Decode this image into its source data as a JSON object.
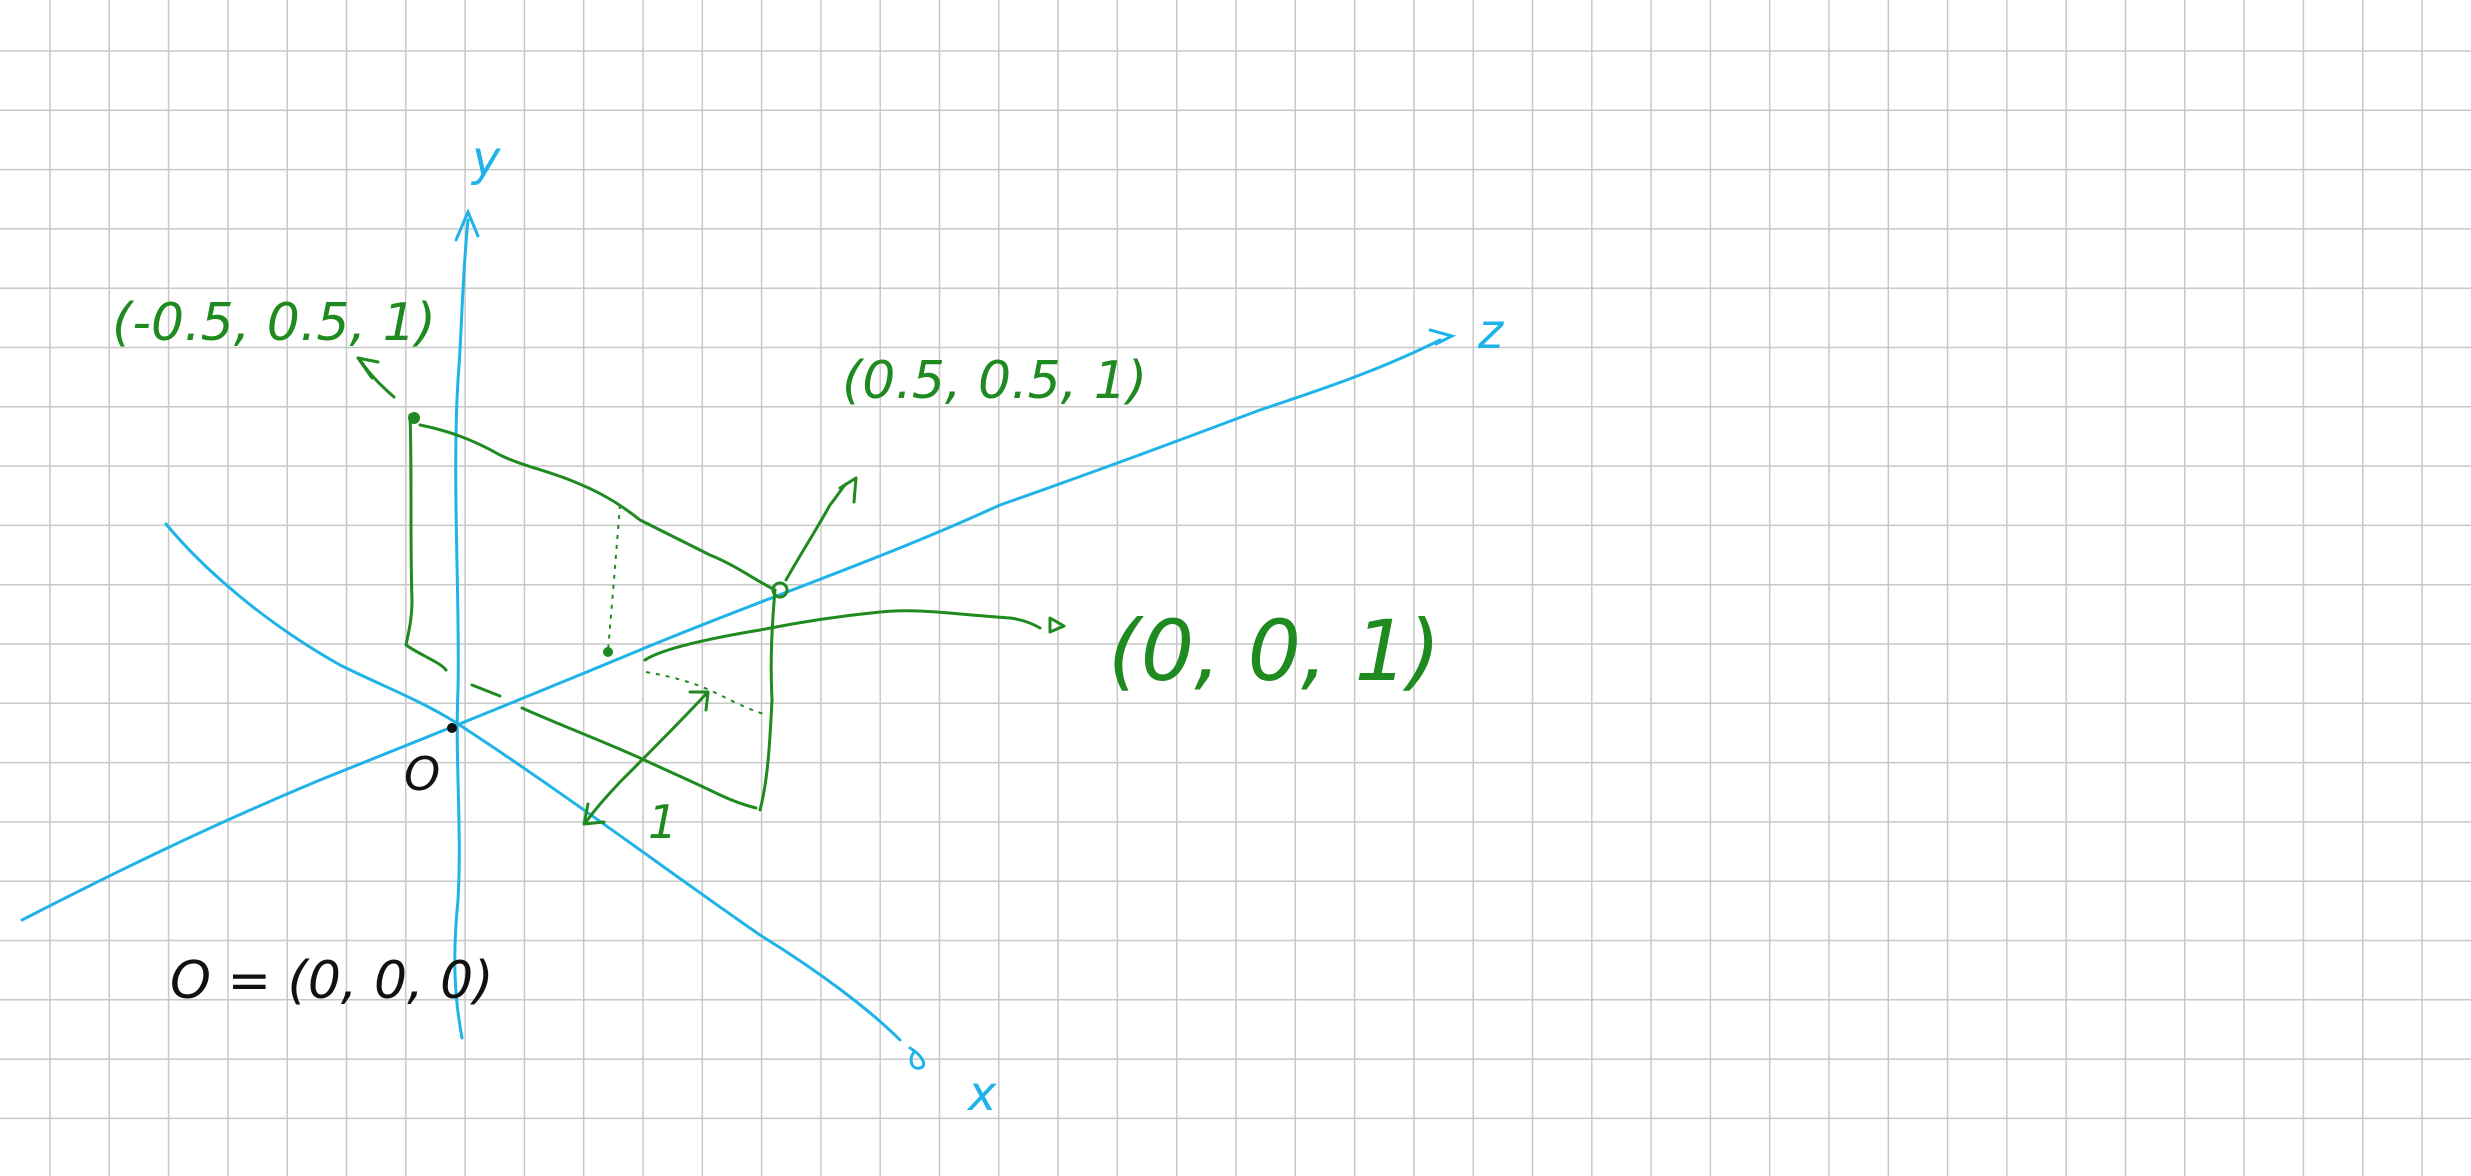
{
  "axes": {
    "x_label": "x",
    "y_label": "y",
    "z_label": "z"
  },
  "labels": {
    "origin": "O",
    "origin_definition": "O = (0, 0, 0)",
    "point_left": "(-0.5, 0.5, 1)",
    "point_right": "(0.5, 0.5, 1)",
    "point_center": "(0, 0, 1)",
    "unit_length": "1"
  },
  "colors": {
    "axis": "#1fb3e8",
    "annotation": "#1f8a1f",
    "text": "#111111",
    "grid": "#c8c8c8"
  }
}
